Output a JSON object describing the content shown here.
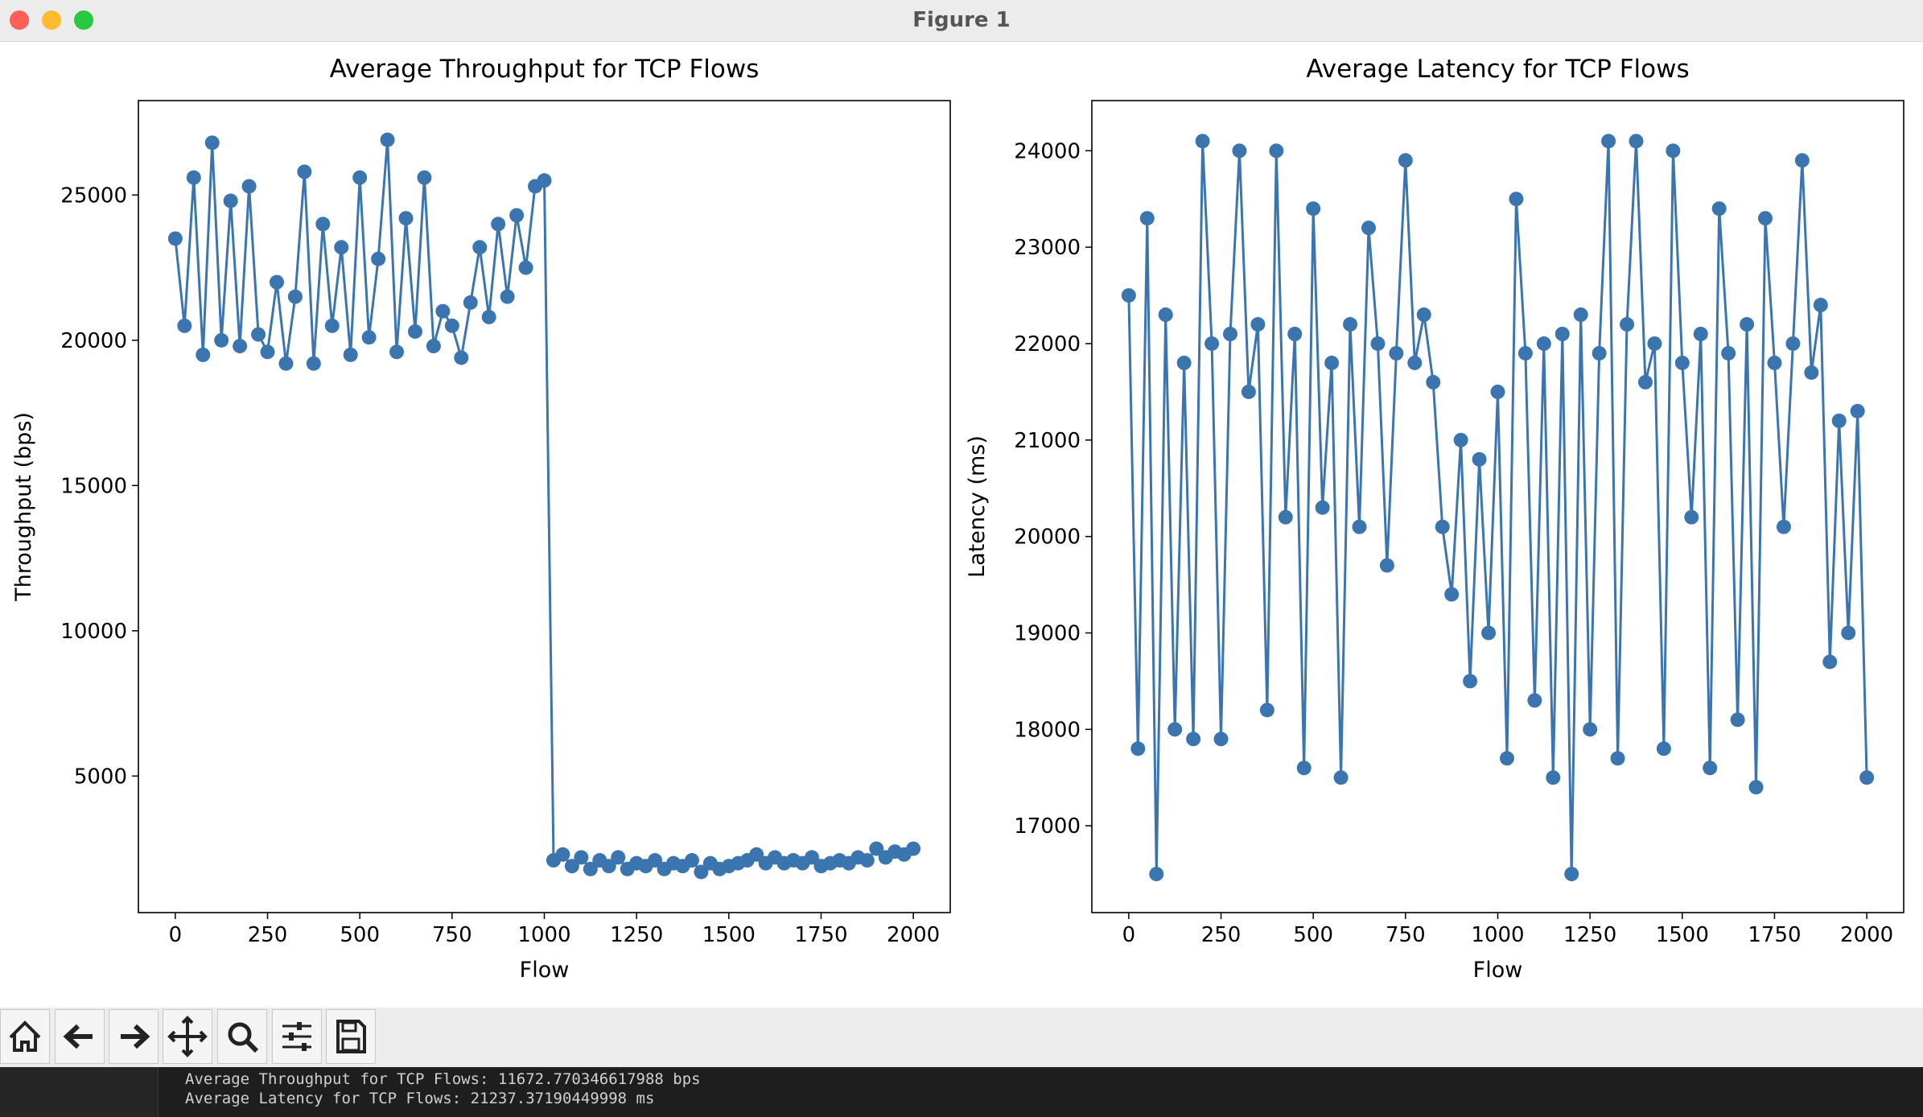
{
  "window": {
    "title": "Figure 1"
  },
  "chart_data": [
    {
      "type": "line",
      "title": "Average Throughput for TCP Flows",
      "xlabel": "Flow",
      "ylabel": "Throughput (bps)",
      "color": "#3b75af",
      "marker": "o",
      "xlim": [
        -100,
        2100
      ],
      "xticks": [
        0,
        250,
        500,
        750,
        1000,
        1250,
        1500,
        1750,
        2000
      ],
      "ylim": [
        300,
        28250
      ],
      "yticks": [
        5000,
        10000,
        15000,
        20000,
        25000
      ],
      "x": [
        0,
        25,
        50,
        75,
        100,
        125,
        150,
        175,
        200,
        225,
        250,
        275,
        300,
        325,
        350,
        375,
        400,
        425,
        450,
        475,
        500,
        525,
        550,
        575,
        600,
        625,
        650,
        675,
        700,
        725,
        750,
        775,
        800,
        825,
        850,
        875,
        900,
        925,
        950,
        975,
        1000,
        1025,
        1050,
        1075,
        1100,
        1125,
        1150,
        1175,
        1200,
        1225,
        1250,
        1275,
        1300,
        1325,
        1350,
        1375,
        1400,
        1425,
        1450,
        1475,
        1500,
        1525,
        1550,
        1575,
        1600,
        1625,
        1650,
        1675,
        1700,
        1725,
        1750,
        1775,
        1800,
        1825,
        1850,
        1875,
        1900,
        1925,
        1950,
        1975,
        2000
      ],
      "values": [
        23500,
        20500,
        25600,
        19500,
        26800,
        20000,
        24800,
        19800,
        25300,
        20200,
        19600,
        22000,
        19200,
        21500,
        25800,
        19200,
        24000,
        20500,
        23200,
        19500,
        25600,
        20100,
        22800,
        26900,
        19600,
        24200,
        20300,
        25600,
        19800,
        21000,
        20500,
        19400,
        21300,
        23200,
        20800,
        24000,
        21500,
        24300,
        22500,
        25300,
        25500,
        2100,
        2300,
        1900,
        2200,
        1800,
        2100,
        1900,
        2200,
        1800,
        2000,
        1900,
        2100,
        1800,
        2000,
        1900,
        2100,
        1700,
        2000,
        1800,
        1900,
        2000,
        2100,
        2300,
        2000,
        2200,
        2000,
        2100,
        2000,
        2200,
        1900,
        2000,
        2100,
        2000,
        2200,
        2100,
        2500,
        2200,
        2400,
        2300,
        2500
      ]
    },
    {
      "type": "line",
      "title": "Average Latency for TCP Flows",
      "xlabel": "Flow",
      "ylabel": "Latency (ms)",
      "color": "#3b75af",
      "marker": "o",
      "xlim": [
        -100,
        2100
      ],
      "xticks": [
        0,
        250,
        500,
        750,
        1000,
        1250,
        1500,
        1750,
        2000
      ],
      "ylim": [
        16100,
        24520
      ],
      "yticks": [
        17000,
        18000,
        19000,
        20000,
        21000,
        22000,
        23000,
        24000
      ],
      "x": [
        0,
        25,
        50,
        75,
        100,
        125,
        150,
        175,
        200,
        225,
        250,
        275,
        300,
        325,
        350,
        375,
        400,
        425,
        450,
        475,
        500,
        525,
        550,
        575,
        600,
        625,
        650,
        675,
        700,
        725,
        750,
        775,
        800,
        825,
        850,
        875,
        900,
        925,
        950,
        975,
        1000,
        1025,
        1050,
        1075,
        1100,
        1125,
        1150,
        1175,
        1200,
        1225,
        1250,
        1275,
        1300,
        1325,
        1350,
        1375,
        1400,
        1425,
        1450,
        1475,
        1500,
        1525,
        1550,
        1575,
        1600,
        1625,
        1650,
        1675,
        1700,
        1725,
        1750,
        1775,
        1800,
        1825,
        1850,
        1875,
        1900,
        1925,
        1950,
        1975,
        2000
      ],
      "values": [
        22500,
        17800,
        23300,
        16500,
        22300,
        18000,
        21800,
        17900,
        24100,
        22000,
        17900,
        22100,
        24000,
        21500,
        22200,
        18200,
        24000,
        20200,
        22100,
        17600,
        23400,
        20300,
        21800,
        17500,
        22200,
        20100,
        23200,
        22000,
        19700,
        21900,
        23900,
        21800,
        22300,
        21600,
        20100,
        19400,
        21000,
        18500,
        20800,
        19000,
        21500,
        17700,
        23500,
        21900,
        18300,
        22000,
        17500,
        22100,
        16500,
        22300,
        18000,
        21900,
        24100,
        17700,
        22200,
        24100,
        21600,
        22000,
        17800,
        24000,
        21800,
        20200,
        22100,
        17600,
        23400,
        21900,
        18100,
        22200,
        17400,
        23300,
        21800,
        20100,
        22000,
        23900,
        21700,
        22400,
        18700,
        21200,
        19000,
        21300,
        17500
      ]
    }
  ],
  "terminal": {
    "lines": [
      "Average Throughput for TCP Flows: 11672.770346617988 bps",
      "Average Latency for TCP Flows: 21237.37190449998 ms"
    ]
  }
}
